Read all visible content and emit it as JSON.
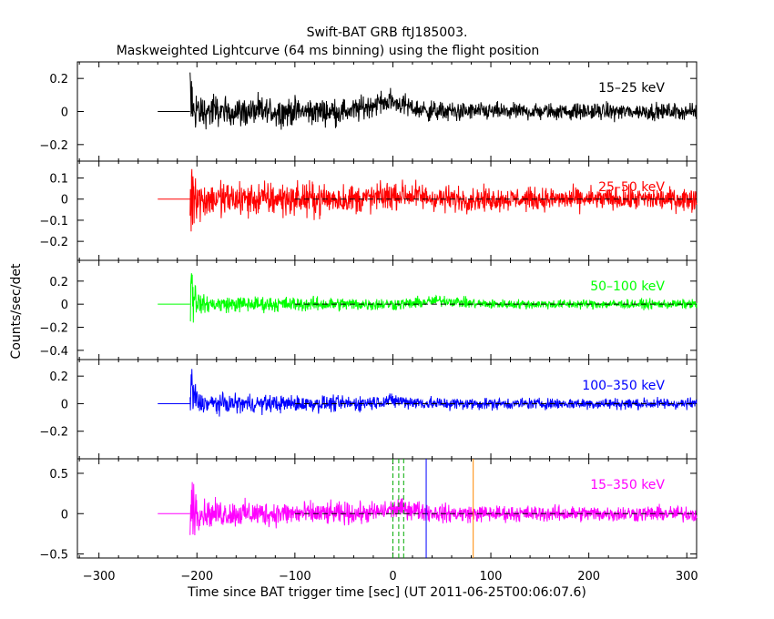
{
  "title": "Swift-BAT GRB ftJ185003.",
  "subtitle": "Maskweighted Lightcurve (64 ms binning) using the flight position",
  "ylabel": "Counts/sec/det",
  "xlabel": "Time since BAT trigger time [sec] (UT 2011-06-25T00:06:07.6)",
  "chart_data": {
    "type": "line",
    "xlim": [
      -322,
      310
    ],
    "xticks": [
      -300,
      -200,
      -100,
      0,
      100,
      200,
      300
    ],
    "xtick_labels": [
      "−300",
      "−200",
      "−100",
      "0",
      "100",
      "200",
      "300"
    ],
    "pre_burst_segment": {
      "x": [
        -240,
        -207
      ],
      "y": 0
    },
    "onset_time": -207,
    "grid": false,
    "panels": [
      {
        "band": "15–25 keV",
        "color": "#000000",
        "ylim": [
          -0.3,
          0.3
        ],
        "yticks": [
          0.2,
          0,
          -0.2
        ],
        "ytick_labels": [
          "0.2",
          "0",
          "−0.2"
        ],
        "noise_start": 0.12,
        "noise_end": 0.06,
        "spike": 0.22,
        "bump_x": -5,
        "bump_amp": 0.06,
        "zero_line": false,
        "label_color": "#000000"
      },
      {
        "band": "25–50 keV",
        "color": "#ff0000",
        "ylim": [
          -0.29,
          0.18
        ],
        "yticks": [
          0.1,
          0,
          -0.1,
          -0.2
        ],
        "ytick_labels": [
          "0.1",
          "0",
          "−0.1",
          "−0.2"
        ],
        "noise_start": 0.11,
        "noise_end": 0.065,
        "spike": 0.25,
        "bump_x": 10,
        "bump_amp": 0.02,
        "zero_line": true,
        "label_color": "#ff0000"
      },
      {
        "band": "50–100 keV",
        "color": "#00ff00",
        "ylim": [
          -0.48,
          0.38
        ],
        "yticks": [
          0.2,
          0,
          -0.2,
          -0.4
        ],
        "ytick_labels": [
          "0.2",
          "0",
          "−0.2",
          "−0.4"
        ],
        "noise_start": 0.09,
        "noise_end": 0.05,
        "spike": 0.4,
        "bump_x": 50,
        "bump_amp": 0.03,
        "zero_line": true,
        "label_color": "#00ff00"
      },
      {
        "band": "100–350 keV",
        "color": "#0000ff",
        "ylim": [
          -0.4,
          0.32
        ],
        "yticks": [
          0.2,
          0,
          -0.2
        ],
        "ytick_labels": [
          "0.2",
          "0",
          "−0.2"
        ],
        "noise_start": 0.085,
        "noise_end": 0.05,
        "spike": 0.28,
        "bump_x": 0,
        "bump_amp": 0.02,
        "zero_line": true,
        "label_color": "#0000ff"
      },
      {
        "band": "15–350 keV",
        "color": "#ff00ff",
        "ylim": [
          -0.55,
          0.68
        ],
        "yticks": [
          0.5,
          0,
          -0.5
        ],
        "ytick_labels": [
          "0.5",
          "0",
          "−0.5"
        ],
        "noise_start": 0.21,
        "noise_end": 0.12,
        "spike": 0.55,
        "bump_x": 10,
        "bump_amp": 0.06,
        "zero_line": true,
        "label_color": "#ff00ff"
      }
    ],
    "markers": [
      {
        "x": 0,
        "color": "#00aa00",
        "style": "dashed"
      },
      {
        "x": 6,
        "color": "#00aa00",
        "style": "dashed"
      },
      {
        "x": 11,
        "color": "#00aa00",
        "style": "dashed"
      },
      {
        "x": 34,
        "color": "#0000ff",
        "style": "solid"
      },
      {
        "x": 82,
        "color": "#ff8800",
        "style": "solid"
      }
    ]
  }
}
